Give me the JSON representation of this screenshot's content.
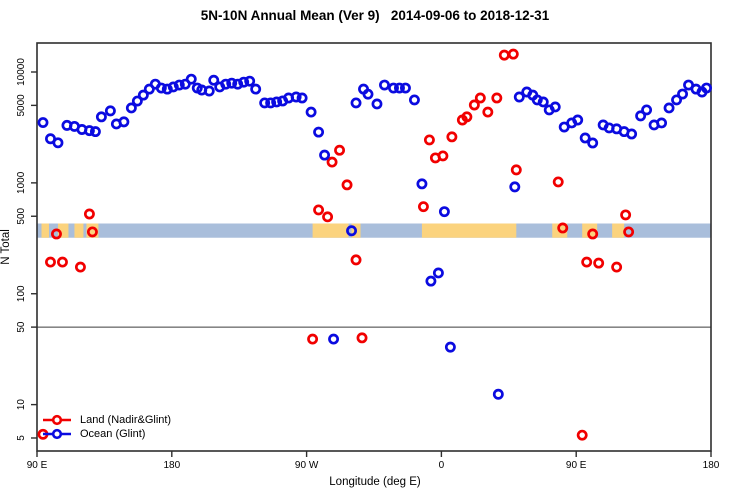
{
  "figure": {
    "title": "5N-10N Annual Mean (Ver 9)   2014-09-06 to 2018-12-31"
  },
  "legend": {
    "items": [
      {
        "label": "Land (Nadir&Glint)",
        "color": "#f10000"
      },
      {
        "label": "Ocean (Glint)",
        "color": "#0b0be0"
      }
    ]
  },
  "chart_data": {
    "type": "scatter",
    "title": "5N-10N Annual Mean (Ver 9)   2014-09-06 to 2018-12-31",
    "xlabel": "Longitude (deg E)",
    "ylabel": "N Total",
    "x_axis": {
      "note": "longitude axis starting at 90E and wrapping past 180 through 90W, 0, back to 180; internal coords run 90..540",
      "range": [
        90,
        540
      ],
      "ticks": [
        90,
        180,
        270,
        360,
        450,
        540
      ],
      "tick_labels": [
        "90 E",
        "180",
        "90 W",
        "0",
        "90 E",
        "180"
      ]
    },
    "y_axis": {
      "scale": "log10",
      "ticks": [
        5,
        10,
        50,
        100,
        500,
        1000,
        5000,
        10000
      ],
      "tick_labels": [
        "5",
        "10",
        "50",
        "100",
        "500",
        "1000",
        "5000",
        "10000"
      ],
      "range": [
        4.2,
        18000
      ]
    },
    "reference_line_y": 50,
    "grid": false,
    "legend_position": "bottom-left",
    "land_ocean_strip": {
      "description": "horizontal map strip at ~N=380 showing ocean (blue) and land (orange) along 5N-10N",
      "value_top": 430,
      "value_bottom": 320,
      "land_segments_lon": [
        [
          93,
          98
        ],
        [
          104,
          111
        ],
        [
          115,
          121
        ],
        [
          123,
          131
        ],
        [
          274,
          298
        ],
        [
          300,
          306
        ],
        [
          347,
          410
        ],
        [
          434,
          444
        ],
        [
          454,
          464
        ],
        [
          474,
          482
        ]
      ]
    },
    "series": [
      {
        "name": "Land (Nadir&Glint)",
        "color": "#f10000",
        "marker": "open-circle",
        "points": [
          [
            94,
            5.4
          ],
          [
            99,
            193
          ],
          [
            103,
            346
          ],
          [
            107,
            193
          ],
          [
            119,
            174
          ],
          [
            125,
            524
          ],
          [
            127,
            361
          ],
          [
            274,
            39
          ],
          [
            278,
            570
          ],
          [
            284,
            494
          ],
          [
            287,
            1540
          ],
          [
            292,
            1970
          ],
          [
            297,
            960
          ],
          [
            303,
            202
          ],
          [
            307,
            40
          ],
          [
            348,
            610
          ],
          [
            352,
            2440
          ],
          [
            356,
            1680
          ],
          [
            361,
            1750
          ],
          [
            367,
            2600
          ],
          [
            374,
            3690
          ],
          [
            377,
            3940
          ],
          [
            382,
            5040
          ],
          [
            386,
            5830
          ],
          [
            391,
            4350
          ],
          [
            397,
            5830
          ],
          [
            402,
            14200
          ],
          [
            408,
            14500
          ],
          [
            410,
            1310
          ],
          [
            438,
            1020
          ],
          [
            441,
            392
          ],
          [
            454,
            5.3
          ],
          [
            457,
            193
          ],
          [
            461,
            346
          ],
          [
            465,
            189
          ],
          [
            477,
            174
          ],
          [
            483,
            514
          ],
          [
            485,
            361
          ]
        ]
      },
      {
        "name": "Ocean (Glint)",
        "color": "#0b0be0",
        "marker": "open-circle",
        "points": [
          [
            94,
            3500
          ],
          [
            99,
            2500
          ],
          [
            104,
            2300
          ],
          [
            110,
            3300
          ],
          [
            115,
            3230
          ],
          [
            120,
            3030
          ],
          [
            125,
            2960
          ],
          [
            129,
            2900
          ],
          [
            133,
            3940
          ],
          [
            139,
            4460
          ],
          [
            143,
            3400
          ],
          [
            148,
            3550
          ],
          [
            153,
            4740
          ],
          [
            157,
            5470
          ],
          [
            161,
            6190
          ],
          [
            165,
            7010
          ],
          [
            169,
            7770
          ],
          [
            173,
            7170
          ],
          [
            177,
            7010
          ],
          [
            181,
            7330
          ],
          [
            185,
            7630
          ],
          [
            189,
            7770
          ],
          [
            193,
            8620
          ],
          [
            197,
            7170
          ],
          [
            200,
            6880
          ],
          [
            205,
            6740
          ],
          [
            208,
            8430
          ],
          [
            212,
            7330
          ],
          [
            216,
            7770
          ],
          [
            220,
            7930
          ],
          [
            224,
            7770
          ],
          [
            228,
            8100
          ],
          [
            232,
            8270
          ],
          [
            236,
            7010
          ],
          [
            242,
            5260
          ],
          [
            246,
            5260
          ],
          [
            250,
            5370
          ],
          [
            254,
            5480
          ],
          [
            258,
            5830
          ],
          [
            263,
            5950
          ],
          [
            267,
            5830
          ],
          [
            273,
            4350
          ],
          [
            278,
            2870
          ],
          [
            282,
            1780
          ],
          [
            288,
            39
          ],
          [
            300,
            370
          ],
          [
            303,
            5260
          ],
          [
            308,
            7010
          ],
          [
            311,
            6310
          ],
          [
            317,
            5150
          ],
          [
            322,
            7630
          ],
          [
            328,
            7170
          ],
          [
            332,
            7170
          ],
          [
            336,
            7170
          ],
          [
            342,
            5600
          ],
          [
            347,
            980
          ],
          [
            353,
            130
          ],
          [
            358,
            154
          ],
          [
            362,
            550
          ],
          [
            366,
            33
          ],
          [
            398,
            12.4
          ],
          [
            409,
            920
          ],
          [
            412,
            5950
          ],
          [
            417,
            6600
          ],
          [
            421,
            6190
          ],
          [
            424,
            5600
          ],
          [
            428,
            5370
          ],
          [
            432,
            4550
          ],
          [
            436,
            4840
          ],
          [
            442,
            3190
          ],
          [
            447,
            3470
          ],
          [
            451,
            3690
          ],
          [
            456,
            2540
          ],
          [
            461,
            2290
          ],
          [
            468,
            3330
          ],
          [
            472,
            3130
          ],
          [
            477,
            3070
          ],
          [
            482,
            2900
          ],
          [
            487,
            2760
          ],
          [
            493,
            4020
          ],
          [
            497,
            4550
          ],
          [
            502,
            3330
          ],
          [
            507,
            3470
          ],
          [
            512,
            4740
          ],
          [
            517,
            5600
          ],
          [
            521,
            6330
          ],
          [
            525,
            7630
          ],
          [
            530,
            7010
          ],
          [
            534,
            6600
          ],
          [
            537,
            7170
          ]
        ]
      }
    ],
    "colors": {
      "land_points": "#f10000",
      "ocean_points": "#0b0be0",
      "strip_ocean": "#a9bedb",
      "strip_land": "#fbd37e",
      "axis": "#2e2e2e",
      "reference_line": "#3c3c3c"
    }
  }
}
